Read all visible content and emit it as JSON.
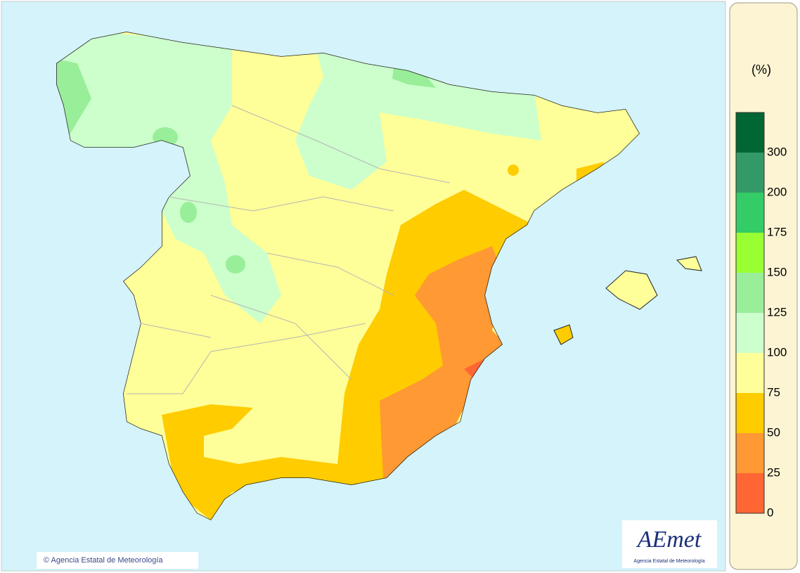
{
  "legend": {
    "unit": "(%)",
    "bins": [
      {
        "color": "#006633",
        "label": 300
      },
      {
        "color": "#339966",
        "label": 200
      },
      {
        "color": "#33cc66",
        "label": 175
      },
      {
        "color": "#99ff33",
        "label": 150
      },
      {
        "color": "#99ee99",
        "label": 125
      },
      {
        "color": "#ccffcc",
        "label": 100
      },
      {
        "color": "#ffff99",
        "label": 75
      },
      {
        "color": "#ffcc00",
        "label": 50
      },
      {
        "color": "#ff9933",
        "label": 25
      },
      {
        "color": "#ff6633",
        "label": 0
      }
    ]
  },
  "copyright": "© Agencia Estatal de Meteorología",
  "logo": {
    "name": "AEmet",
    "caption": "Agencia Estatal de Meteorología"
  }
}
